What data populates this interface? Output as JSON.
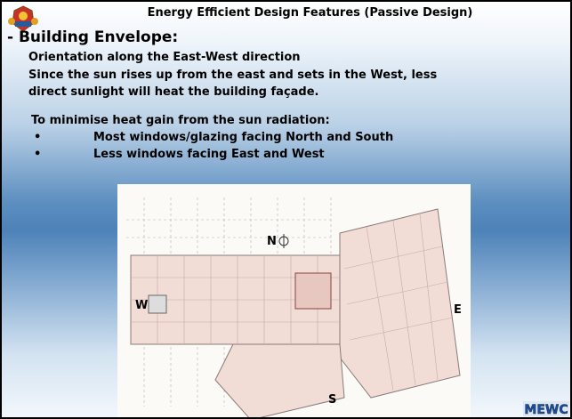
{
  "header": {
    "title": "Energy Efficient Design Features (Passive Design)"
  },
  "section": {
    "heading": "- Building Envelope:",
    "lines": [
      "Orientation along the East-West direction",
      "Since the sun rises up from the east and sets in the West, less",
      "direct sunlight will heat the building façade."
    ],
    "intro": "To minimise heat gain from the sun radiation:",
    "bullets": [
      "Most windows/glazing facing North and South",
      "Less windows facing East and West"
    ]
  },
  "plan": {
    "north": "N",
    "west": "W",
    "east": "E",
    "south": "S"
  },
  "logo": "MEWC"
}
